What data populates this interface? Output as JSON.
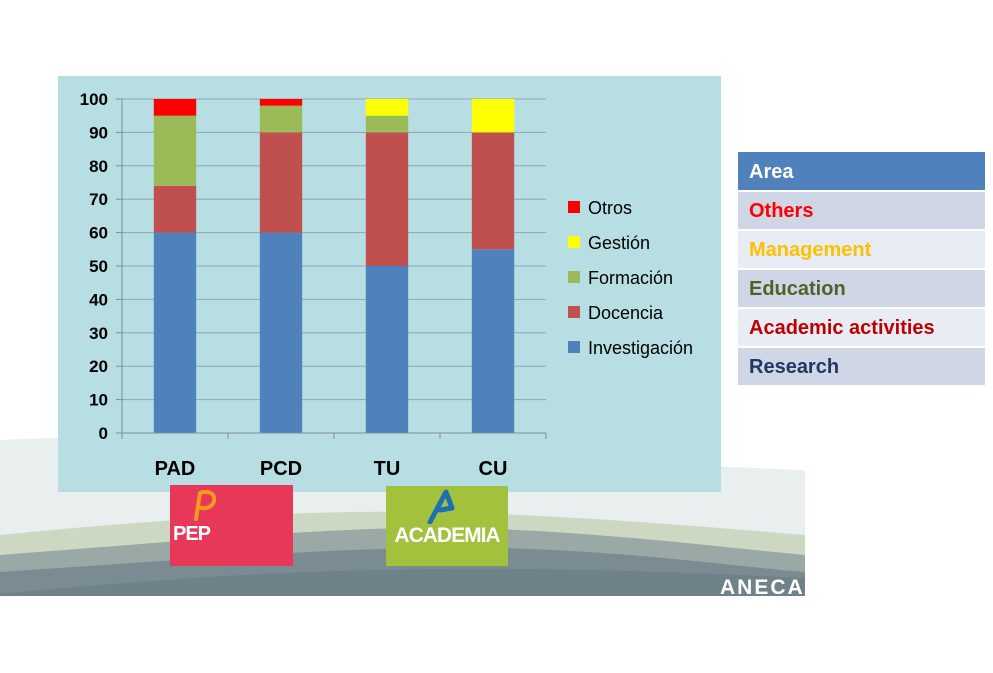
{
  "chart_data": {
    "type": "bar",
    "stacked": true,
    "categories": [
      "PAD",
      "PCD",
      "TU",
      "CU"
    ],
    "series": [
      {
        "name": "Investigación",
        "color": "#4f81bd",
        "values": [
          60,
          60,
          50,
          55
        ]
      },
      {
        "name": "Docencia",
        "color": "#c0504d",
        "values": [
          14,
          30,
          40,
          35
        ]
      },
      {
        "name": "Formación",
        "color": "#9bbb59",
        "values": [
          21,
          8,
          5,
          0
        ]
      },
      {
        "name": "Gestión",
        "color": "#ffff00",
        "values": [
          0,
          0,
          5,
          10
        ]
      },
      {
        "name": "Otros",
        "color": "#ff0000",
        "values": [
          5,
          2,
          0,
          0
        ]
      }
    ],
    "ylim": [
      0,
      100
    ],
    "yticks": [
      "0",
      "10",
      "20",
      "30",
      "40",
      "50",
      "60",
      "70",
      "80",
      "90",
      "100"
    ],
    "legend_order": [
      "Otros",
      "Gestión",
      "Formación",
      "Docencia",
      "Investigación"
    ],
    "legend_position": "right",
    "grid": "horizontal",
    "title": "",
    "xlabel": "",
    "ylabel": ""
  },
  "area_table": {
    "header": "Area",
    "rows": [
      {
        "label": "Others",
        "color": "#ff0000"
      },
      {
        "label": "Management",
        "color": "#ffc000"
      },
      {
        "label": "Education",
        "color": "#4f6228"
      },
      {
        "label": "Academic activities",
        "color": "#c00000"
      },
      {
        "label": "Research",
        "color": "#1f3864"
      }
    ]
  },
  "logos": {
    "pep": "PEP",
    "academia": "ACADEMIA"
  },
  "brand": "ANECA"
}
